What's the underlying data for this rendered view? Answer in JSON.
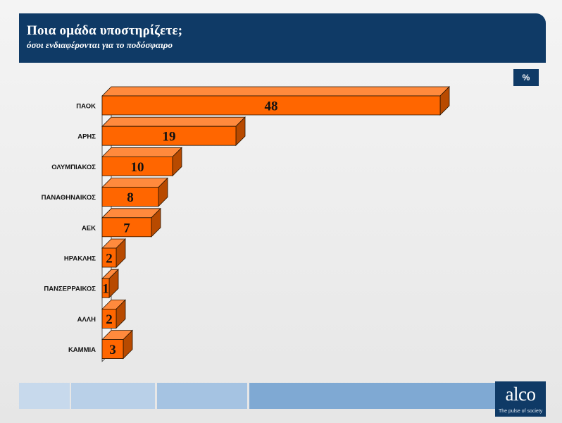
{
  "header": {
    "title": "Ποια ομάδα υποστηρίζετε;",
    "subtitle": "όσοι ενδιαφέρονται για το ποδόσφαιρο"
  },
  "unit_badge": "%",
  "colors": {
    "header_bg": "#0f3a66",
    "bar_front": "#ff6600",
    "bar_top": "#ff8a3d",
    "bar_side": "#b84a00",
    "footer_segments": [
      "#c7d9ec",
      "#b9d0e8",
      "#a5c3e2",
      "#7fa9d3"
    ]
  },
  "chart_data": {
    "type": "bar",
    "orientation": "horizontal",
    "style": "3d",
    "title": "Ποια ομάδα υποστηρίζετε;",
    "subtitle": "όσοι ενδιαφέρονται για το ποδόσφαιρο",
    "unit": "%",
    "categories": [
      "ΠΑΟΚ",
      "ΑΡΗΣ",
      "ΟΛΥΜΠΙΑΚΟΣ",
      "ΠΑΝΑΘΗΝΑΙΚΟΣ",
      "ΑΕΚ",
      "ΗΡΑΚΛΗΣ",
      "ΠΑΝΣΕΡΡΑΙΚΟΣ",
      "ΑΛΛΗ",
      "ΚΑΜΜΙΑ"
    ],
    "values": [
      48,
      19,
      10,
      8,
      7,
      2,
      1,
      2,
      3
    ],
    "xlim": [
      0,
      50
    ],
    "grid": false,
    "legend": "none"
  },
  "logo": {
    "wordmark": "alco",
    "tagline": "The pulse of society"
  }
}
